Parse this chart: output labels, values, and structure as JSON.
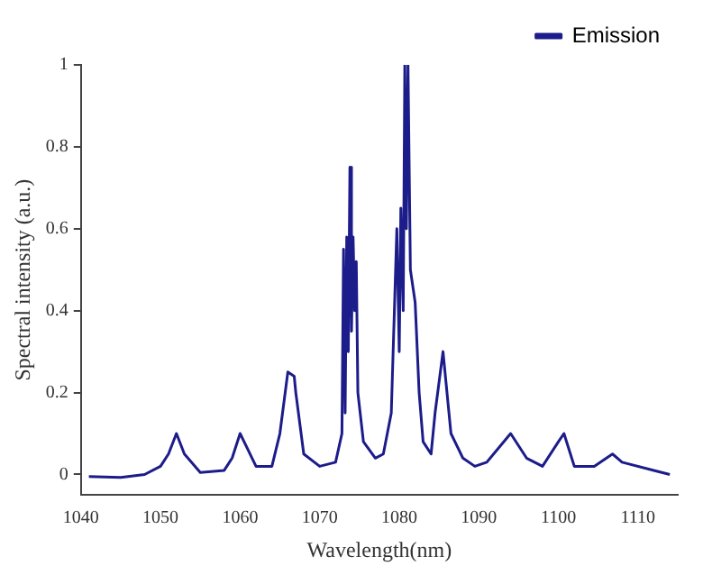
{
  "chart_data": {
    "type": "line",
    "xlabel": "Wavelength(nm)",
    "ylabel": "Spectral intensity (a.u.)",
    "xlim": [
      1040,
      1115
    ],
    "xticks": [
      1040,
      1050,
      1060,
      1070,
      1080,
      1090,
      1100,
      1110
    ],
    "ylim": [
      -0.05,
      1
    ],
    "yticks": [
      0,
      0.2,
      0.4,
      0.6,
      0.8,
      1
    ],
    "grid": false,
    "legend": "top right",
    "marker": "none",
    "line_style": "solid",
    "series": [
      {
        "name": "Emission",
        "color": "#1c1c8a",
        "x": [
          1041,
          1045,
          1048,
          1050,
          1051,
          1052,
          1053,
          1055,
          1058,
          1059,
          1060,
          1061,
          1062,
          1064,
          1065,
          1066,
          1066.8,
          1067,
          1068,
          1070,
          1072,
          1072.8,
          1073,
          1073.2,
          1073.4,
          1073.6,
          1073.8,
          1074,
          1074.2,
          1074.4,
          1074.6,
          1074.8,
          1075.5,
          1077,
          1078,
          1079,
          1079.7,
          1080,
          1080.2,
          1080.5,
          1080.7,
          1080.9,
          1081.1,
          1081.4,
          1082,
          1082.5,
          1083,
          1084,
          1084.5,
          1085.5,
          1086.5,
          1088,
          1089.5,
          1091,
          1094,
          1096,
          1098,
          1100,
          1100.7,
          1102,
          1104.5,
          1106.8,
          1108,
          1112,
          1114
        ],
        "values": [
          -0.005,
          -0.007,
          0,
          0.02,
          0.05,
          0.1,
          0.05,
          0.005,
          0.01,
          0.04,
          0.1,
          0.06,
          0.02,
          0.02,
          0.1,
          0.25,
          0.24,
          0.2,
          0.05,
          0.02,
          0.03,
          0.1,
          0.55,
          0.15,
          0.58,
          0.3,
          0.75,
          0.35,
          0.58,
          0.4,
          0.52,
          0.2,
          0.08,
          0.04,
          0.05,
          0.15,
          0.6,
          0.3,
          0.65,
          0.4,
          1,
          0.6,
          1,
          0.5,
          0.42,
          0.2,
          0.08,
          0.05,
          0.15,
          0.3,
          0.1,
          0.04,
          0.02,
          0.03,
          0.1,
          0.04,
          0.02,
          0.08,
          0.1,
          0.02,
          0.02,
          0.05,
          0.03,
          0.01,
          0
        ]
      }
    ]
  }
}
